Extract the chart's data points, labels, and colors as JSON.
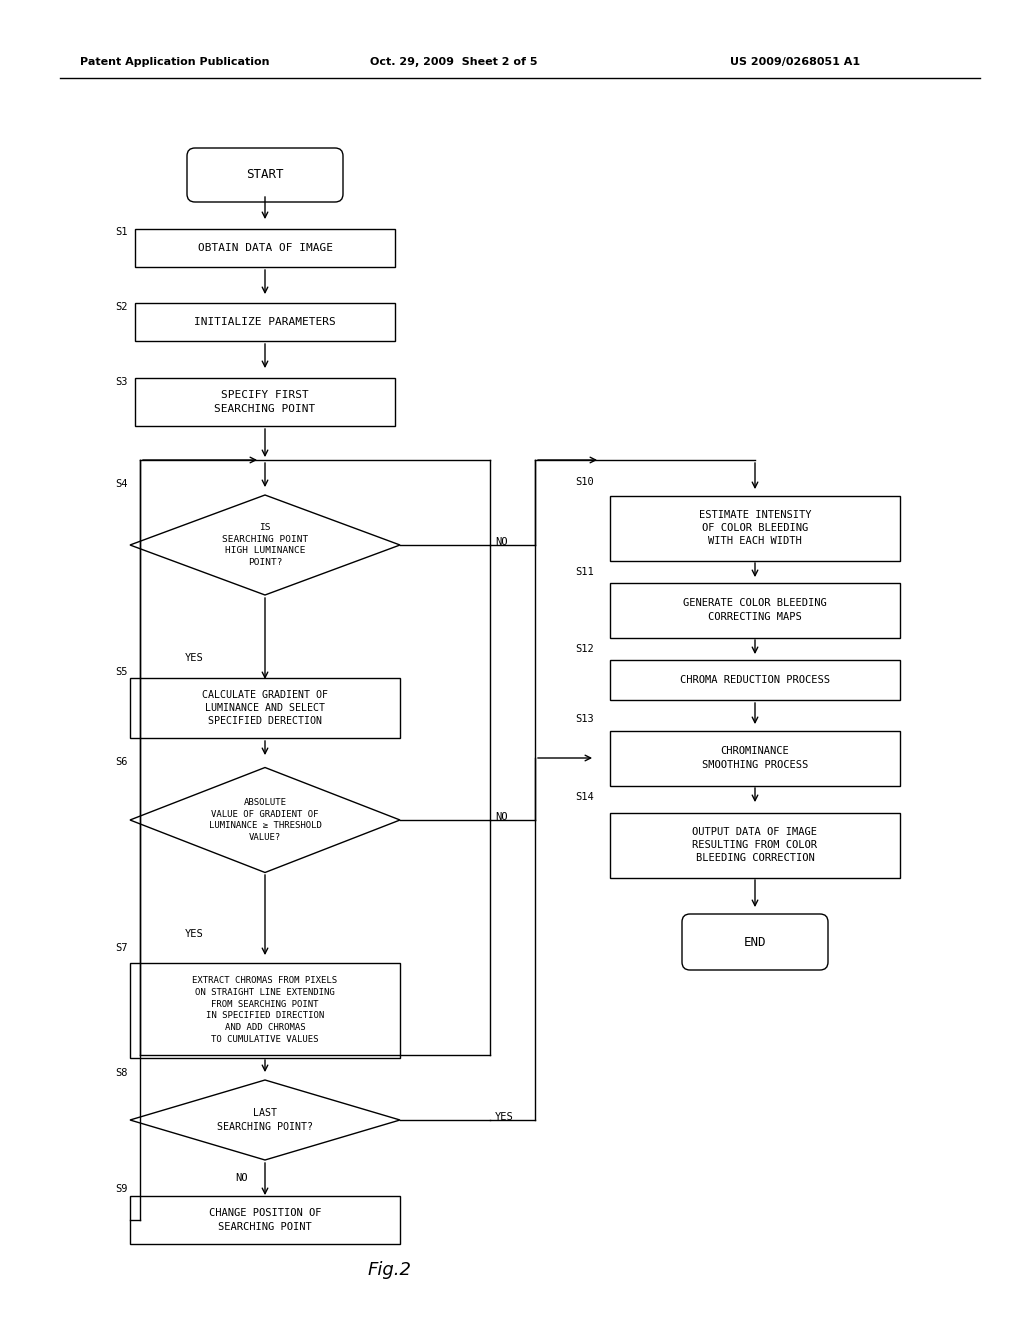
{
  "header_left": "Patent Application Publication",
  "header_center": "Oct. 29, 2009  Sheet 2 of 5",
  "header_right": "US 2009/0268051 A1",
  "caption": "Fig.2",
  "bg_color": "#ffffff"
}
